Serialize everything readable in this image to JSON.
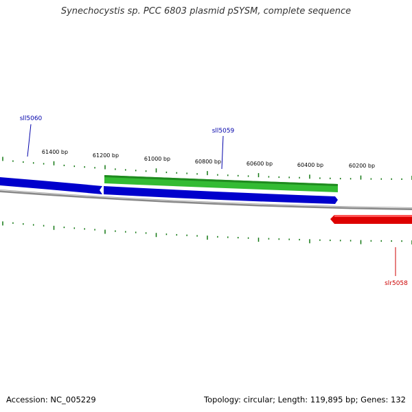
{
  "title": "Synechocystis sp. PCC 6803 plasmid pSYSM, complete sequence",
  "colors": {
    "reverse_gene": "#0000cc",
    "forward_gene": "#dd0000",
    "alt_gene": "#33bb33",
    "tick": "#117711",
    "backbone": "#888888",
    "label_blue": "#0000aa",
    "label_red": "#cc0000"
  },
  "ticks": {
    "labels": [
      "61400 bp",
      "61200 bp",
      "61000 bp",
      "60800 bp",
      "60600 bp",
      "60400 bp",
      "60200 bp"
    ]
  },
  "genes": [
    {
      "name": "sll5060",
      "strand": "reverse"
    },
    {
      "name": "sll5059",
      "strand": "reverse"
    },
    {
      "name": "slr5058",
      "strand": "forward"
    }
  ],
  "footer": {
    "accession_label": "Accession:",
    "accession": "NC_005229",
    "topology_label": "Topology:",
    "topology": "circular;",
    "length_label": "Length:",
    "length": "119,895 bp;",
    "genes_label": "Genes:",
    "genes_count": "132"
  }
}
